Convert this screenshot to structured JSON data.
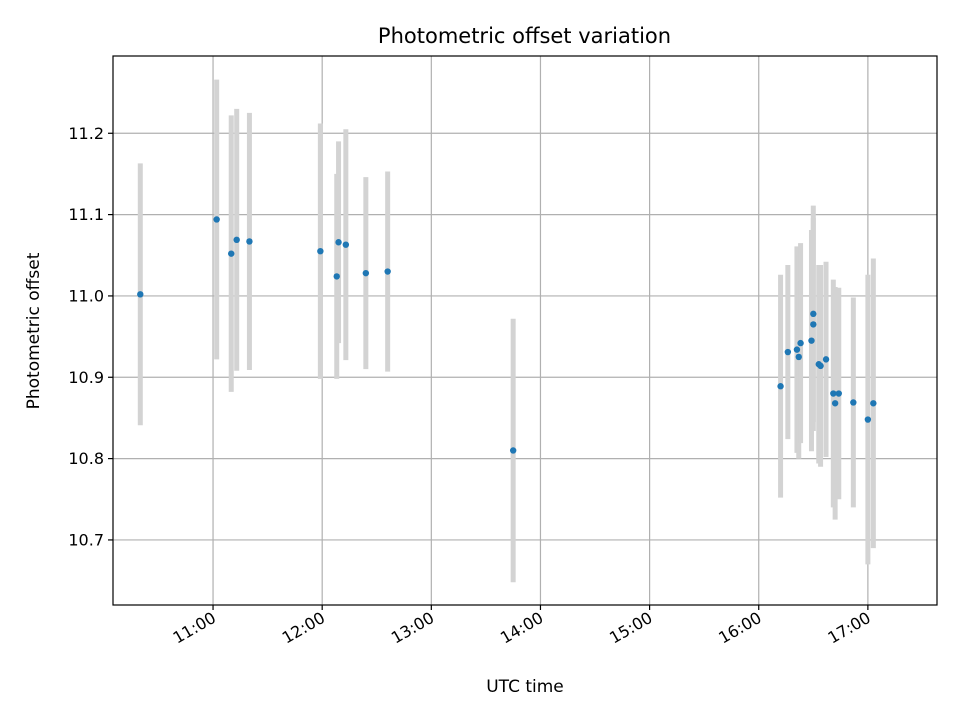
{
  "chart_data": {
    "type": "scatter",
    "title": "Photometric offset variation",
    "xlabel": "UTC time",
    "ylabel": "Photometric offset",
    "grid": true,
    "x_ticks": [
      "11:00",
      "12:00",
      "13:00",
      "14:00",
      "15:00",
      "16:00",
      "17:00"
    ],
    "y_ticks": [
      "10.7",
      "10.8",
      "10.9",
      "11.0",
      "11.1",
      "11.2"
    ],
    "xlim": [
      "10:05",
      "17:38"
    ],
    "ylim": [
      10.62,
      11.295
    ],
    "colors": {
      "point": "#1f77b4",
      "errorbar": "#d3d3d3",
      "grid": "#b0b0b0"
    },
    "points": [
      {
        "x": "10:20",
        "y": 11.002,
        "err": 0.161
      },
      {
        "x": "11:02",
        "y": 11.094,
        "err": 0.172
      },
      {
        "x": "11:10",
        "y": 11.052,
        "err": 0.17
      },
      {
        "x": "11:13",
        "y": 11.069,
        "err": 0.161
      },
      {
        "x": "11:20",
        "y": 11.067,
        "err": 0.158
      },
      {
        "x": "11:59",
        "y": 11.055,
        "err": 0.157
      },
      {
        "x": "12:08",
        "y": 11.024,
        "err": 0.126
      },
      {
        "x": "12:09",
        "y": 11.066,
        "err": 0.124
      },
      {
        "x": "12:13",
        "y": 11.063,
        "err": 0.142
      },
      {
        "x": "12:24",
        "y": 11.028,
        "err": 0.118
      },
      {
        "x": "12:36",
        "y": 11.03,
        "err": 0.123
      },
      {
        "x": "13:45",
        "y": 10.81,
        "err": 0.162
      },
      {
        "x": "16:12",
        "y": 10.889,
        "err": 0.137
      },
      {
        "x": "16:16",
        "y": 10.931,
        "err": 0.107
      },
      {
        "x": "16:21",
        "y": 10.934,
        "err": 0.127
      },
      {
        "x": "16:22",
        "y": 10.925,
        "err": 0.125
      },
      {
        "x": "16:23",
        "y": 10.942,
        "err": 0.123
      },
      {
        "x": "16:29",
        "y": 10.945,
        "err": 0.136
      },
      {
        "x": "16:30",
        "y": 10.978,
        "err": 0.133
      },
      {
        "x": "16:30",
        "y": 10.965,
        "err": 0.131
      },
      {
        "x": "16:33",
        "y": 10.916,
        "err": 0.122
      },
      {
        "x": "16:34",
        "y": 10.914,
        "err": 0.124
      },
      {
        "x": "16:37",
        "y": 10.922,
        "err": 0.12
      },
      {
        "x": "16:41",
        "y": 10.88,
        "err": 0.14
      },
      {
        "x": "16:42",
        "y": 10.868,
        "err": 0.143
      },
      {
        "x": "16:44",
        "y": 10.88,
        "err": 0.13
      },
      {
        "x": "16:52",
        "y": 10.869,
        "err": 0.129
      },
      {
        "x": "17:00",
        "y": 10.848,
        "err": 0.178
      },
      {
        "x": "17:03",
        "y": 10.868,
        "err": 0.178
      }
    ]
  }
}
